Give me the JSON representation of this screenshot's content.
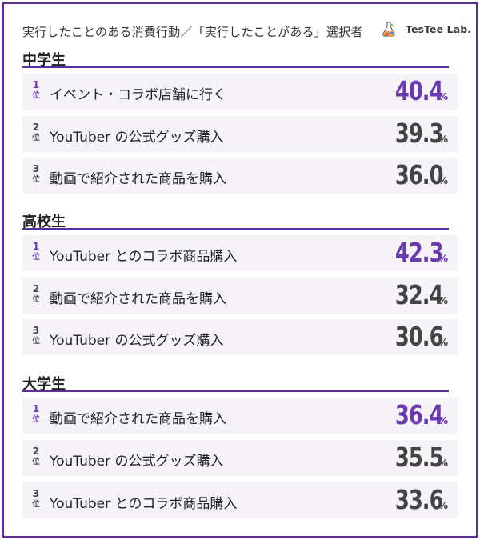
{
  "title": "実行したことのある消費行動／「実行したことがある」選択者",
  "logo": {
    "text": "TesTee Lab."
  },
  "colors": {
    "accent": "#6a3bb0",
    "rule": "#5a2f96",
    "row_bg": "#f5f3f8",
    "text": "#444444"
  },
  "chart_data": {
    "type": "table",
    "unit": "%",
    "rank_suffix": "位",
    "groups": [
      {
        "name": "中学生",
        "items": [
          {
            "rank": "1",
            "label": "イベント・コラボ店舗に行く",
            "value": "40.4"
          },
          {
            "rank": "2",
            "label": "YouTuber の公式グッズ購入",
            "value": "39.3"
          },
          {
            "rank": "3",
            "label": "動画で紹介された商品を購入",
            "value": "36.0"
          }
        ]
      },
      {
        "name": "高校生",
        "items": [
          {
            "rank": "1",
            "label": "YouTuber とのコラボ商品購入",
            "value": "42.3"
          },
          {
            "rank": "2",
            "label": "動画で紹介された商品を購入",
            "value": "32.4"
          },
          {
            "rank": "3",
            "label": "YouTuber の公式グッズ購入",
            "value": "30.6"
          }
        ]
      },
      {
        "name": "大学生",
        "items": [
          {
            "rank": "1",
            "label": "動画で紹介された商品を購入",
            "value": "36.4"
          },
          {
            "rank": "2",
            "label": "YouTuber の公式グッズ購入",
            "value": "35.5"
          },
          {
            "rank": "3",
            "label": "YouTuber とのコラボ商品購入",
            "value": "33.6"
          }
        ]
      }
    ]
  }
}
